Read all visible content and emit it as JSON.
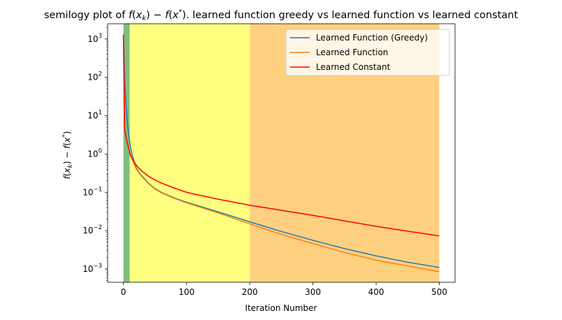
{
  "chart_data": {
    "type": "line",
    "title": "semilogy plot of f(x_k) − f(x*). learned function greedy vs learned function vs learned constant",
    "title_parts": {
      "prefix": "semilogy plot of ",
      "f1": "f",
      "p1": "(",
      "x1": "x",
      "k": "k",
      "p2": ")",
      "minus": " − ",
      "f2": "f",
      "p3": "(",
      "x2": "x",
      "star": "*",
      "p4": ")",
      "suffix": ". learned function greedy vs learned function vs learned constant"
    },
    "xlabel": "Iteration Number",
    "ylabel": "f(x_k) − f(x*)",
    "ylabel_parts": {
      "f1": "f",
      "p1": "(",
      "x1": "x",
      "k": "k",
      "p2": ")",
      "minus": " − ",
      "f2": "f",
      "p3": "(",
      "x2": "x",
      "star": "*",
      "p4": ")"
    },
    "yscale": "log",
    "xlim": [
      -25,
      525
    ],
    "ylim": [
      0.00045,
      2500
    ],
    "x_ticks": [
      0,
      100,
      200,
      300,
      400,
      500
    ],
    "x_tick_labels": [
      "0",
      "100",
      "200",
      "300",
      "400",
      "500"
    ],
    "y_ticks": [
      0.001,
      0.01,
      0.1,
      1,
      10,
      100,
      1000
    ],
    "y_tick_labels": [
      {
        "base": "10",
        "exp": "−3"
      },
      {
        "base": "10",
        "exp": "−2"
      },
      {
        "base": "10",
        "exp": "−1"
      },
      {
        "base": "10",
        "exp": "0"
      },
      {
        "base": "10",
        "exp": "1"
      },
      {
        "base": "10",
        "exp": "2"
      },
      {
        "base": "10",
        "exp": "3"
      }
    ],
    "shaded_regions": [
      {
        "x0": 0,
        "x1": 10,
        "color": "#7fbf7f"
      },
      {
        "x0": 10,
        "x1": 200,
        "color": "#ffff80"
      },
      {
        "x0": 200,
        "x1": 500,
        "color": "#ffd080"
      }
    ],
    "legend_position": "upper-right",
    "series": [
      {
        "name": "Learned Function (Greedy)",
        "color": "#1f77b4",
        "x": [
          0,
          2,
          4,
          6,
          8,
          10,
          12,
          15,
          20,
          25,
          30,
          40,
          50,
          60,
          80,
          100,
          150,
          200,
          250,
          300,
          350,
          400,
          450,
          500
        ],
        "y": [
          1300,
          80,
          20,
          7,
          3.5,
          2.0,
          1.3,
          0.8,
          0.45,
          0.32,
          0.26,
          0.17,
          0.125,
          0.1,
          0.072,
          0.055,
          0.031,
          0.017,
          0.0095,
          0.0056,
          0.0034,
          0.0022,
          0.0015,
          0.0011
        ]
      },
      {
        "name": "Learned Function",
        "color": "#ff7f0e",
        "x": [
          0,
          2,
          4,
          6,
          8,
          10,
          12,
          15,
          20,
          25,
          30,
          40,
          50,
          60,
          80,
          100,
          150,
          200,
          250,
          300,
          350,
          400,
          450,
          500
        ],
        "y": [
          1300,
          4.5,
          3.2,
          2.2,
          1.6,
          1.2,
          0.9,
          0.65,
          0.42,
          0.31,
          0.25,
          0.165,
          0.122,
          0.097,
          0.07,
          0.053,
          0.029,
          0.015,
          0.008,
          0.0046,
          0.0027,
          0.0017,
          0.0012,
          0.00085
        ]
      },
      {
        "name": "Learned Constant",
        "color": "#ff0000",
        "x": [
          0,
          2,
          4,
          6,
          8,
          10,
          12,
          15,
          20,
          25,
          30,
          40,
          50,
          60,
          80,
          100,
          150,
          200,
          250,
          300,
          350,
          400,
          450,
          500
        ],
        "y": [
          1300,
          4.2,
          2.8,
          2.0,
          1.5,
          1.05,
          0.85,
          0.7,
          0.52,
          0.42,
          0.35,
          0.26,
          0.21,
          0.175,
          0.13,
          0.1,
          0.066,
          0.046,
          0.034,
          0.025,
          0.018,
          0.013,
          0.0097,
          0.0073
        ]
      }
    ]
  }
}
